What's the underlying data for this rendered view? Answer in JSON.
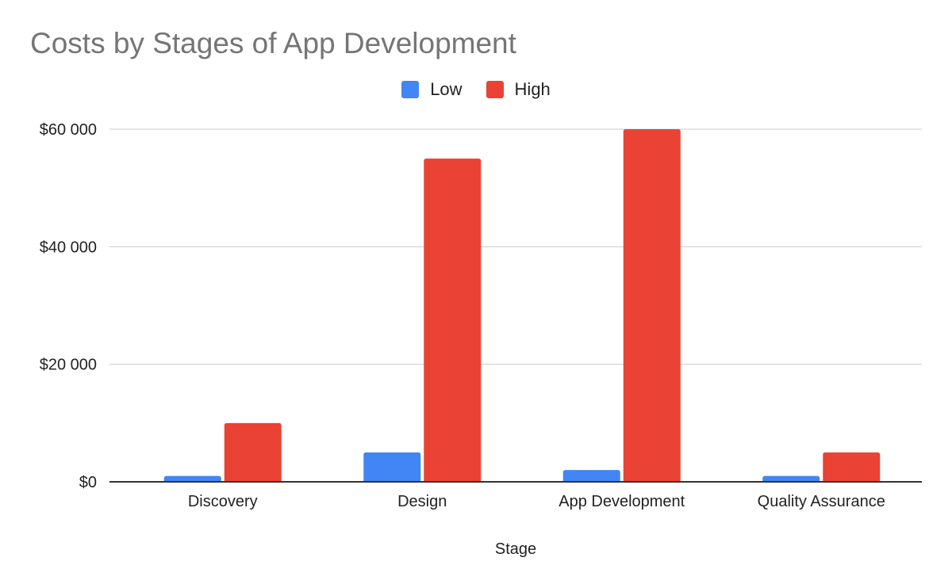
{
  "chart_data": {
    "type": "bar",
    "title": "Costs by Stages of App Development",
    "xlabel": "Stage",
    "ylabel": "",
    "categories": [
      "Discovery",
      "Design",
      "App Development",
      "Quality Assurance"
    ],
    "series": [
      {
        "name": "Low",
        "color": "#4285f4",
        "values": [
          1000,
          5000,
          2000,
          1000
        ]
      },
      {
        "name": "High",
        "color": "#ea4335",
        "values": [
          10000,
          55000,
          60000,
          5000
        ]
      }
    ],
    "ylim": [
      0,
      60000
    ],
    "yticks": [
      0,
      20000,
      40000,
      60000
    ],
    "ytick_labels": [
      "$0",
      "$20 000",
      "$40 000",
      "$60 000"
    ],
    "grid": true,
    "legend": "top-center"
  }
}
